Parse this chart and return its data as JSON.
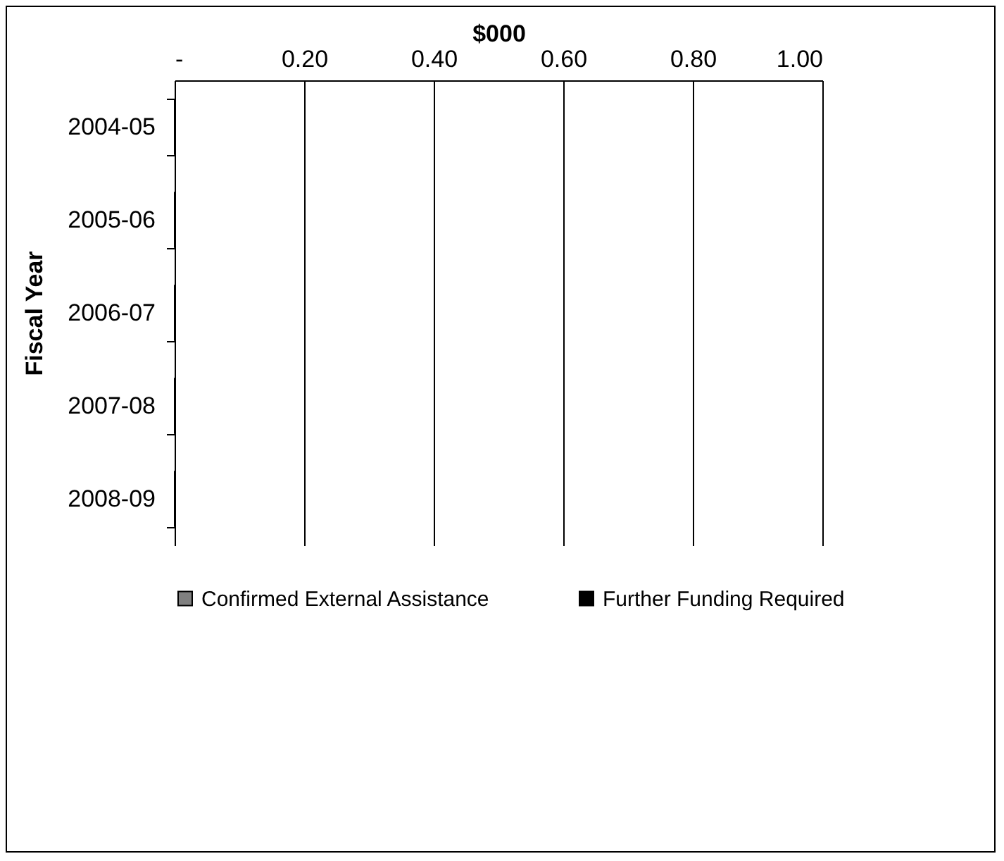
{
  "chart_data": {
    "type": "bar",
    "orientation": "horizontal",
    "xlabel": "$000",
    "ylabel": "Fiscal Year",
    "categories": [
      "2004-05",
      "2005-06",
      "2006-07",
      "2007-08",
      "2008-09"
    ],
    "series": [
      {
        "name": "Confirmed External Assistance",
        "color": "#808080",
        "values": [
          0,
          0,
          0,
          0,
          0
        ]
      },
      {
        "name": "Further Funding Required",
        "color": "#000000",
        "values": [
          0,
          0,
          0,
          0,
          0
        ]
      }
    ],
    "xlim": [
      0,
      1
    ],
    "xticks": [
      {
        "value": 0,
        "label": "-"
      },
      {
        "value": 0.2,
        "label": "0.20"
      },
      {
        "value": 0.4,
        "label": "0.40"
      },
      {
        "value": 0.6,
        "label": "0.60"
      },
      {
        "value": 0.8,
        "label": "0.80"
      },
      {
        "value": 1,
        "label": "1.00"
      }
    ],
    "grid": "x",
    "legend": "bottom"
  }
}
